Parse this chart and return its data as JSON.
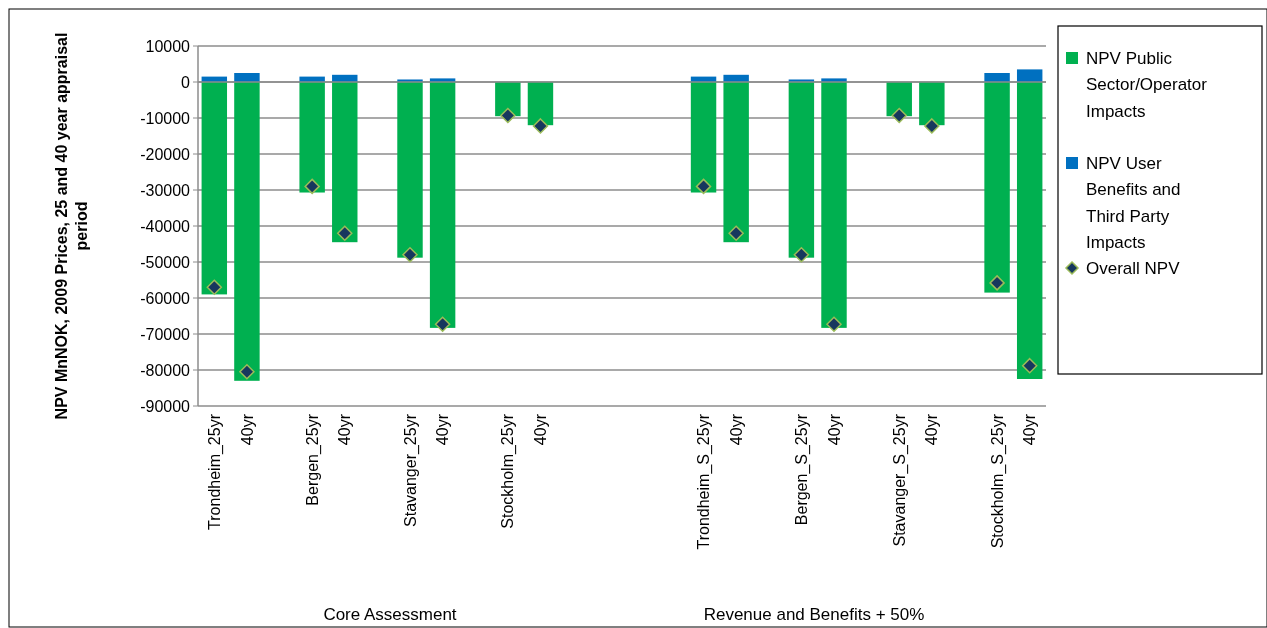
{
  "chart_data": {
    "type": "bar",
    "stacked": true,
    "categories": [
      "Trondheim_25yr",
      "40yr",
      null,
      "Bergen_25yr",
      "40yr",
      null,
      "Stavanger_25yr",
      "40yr",
      null,
      "Stockholm_25yr",
      "40yr",
      null,
      null,
      null,
      null,
      "Trondheim_S_25yr",
      "40yr",
      null,
      "Bergen_S_25yr",
      "40yr",
      null,
      "Stavanger_S_25yr",
      "40yr",
      null,
      "Stockholm_S_25yr",
      "40yr"
    ],
    "series": [
      {
        "name": "NPV Public Sector/Operator Impacts",
        "color": "#00b050",
        "values": [
          -59000,
          -83000,
          null,
          -30700,
          -44500,
          null,
          -48800,
          -68300,
          null,
          -9500,
          -12000,
          null,
          null,
          null,
          null,
          -30700,
          -44500,
          null,
          -48800,
          -68300,
          null,
          -9500,
          -12000,
          null,
          -58500,
          -82500
        ]
      },
      {
        "name": "NPV User Benefits and Third Party Impacts",
        "color": "#0070c0",
        "values": [
          1500,
          2500,
          null,
          1500,
          2000,
          null,
          700,
          1000,
          null,
          null,
          null,
          null,
          null,
          null,
          null,
          1500,
          2000,
          null,
          700,
          1000,
          null,
          null,
          null,
          null,
          2500,
          3500
        ]
      },
      {
        "name": "Overall NPV",
        "type": "scatter",
        "marker": "diamond",
        "color": "#17375e",
        "values": [
          -57000,
          -80500,
          null,
          -29000,
          -42000,
          null,
          -48000,
          -67300,
          null,
          -9300,
          -12200,
          null,
          null,
          null,
          null,
          -29000,
          -42000,
          null,
          -48000,
          -67300,
          null,
          -9300,
          -12200,
          null,
          -55800,
          -78800
        ]
      }
    ],
    "ylabel": "NPV MnNOK, 2009 Prices, 25 and 40 year appraisal period",
    "ylim": [
      -90000,
      10000
    ],
    "yticks": [
      -90000,
      -80000,
      -70000,
      -60000,
      -50000,
      -40000,
      -30000,
      -20000,
      -10000,
      0,
      10000
    ],
    "grid": "y",
    "legend": "right",
    "annotations": [
      "Core Assessment",
      "Revenue and Benefits + 50%"
    ]
  }
}
